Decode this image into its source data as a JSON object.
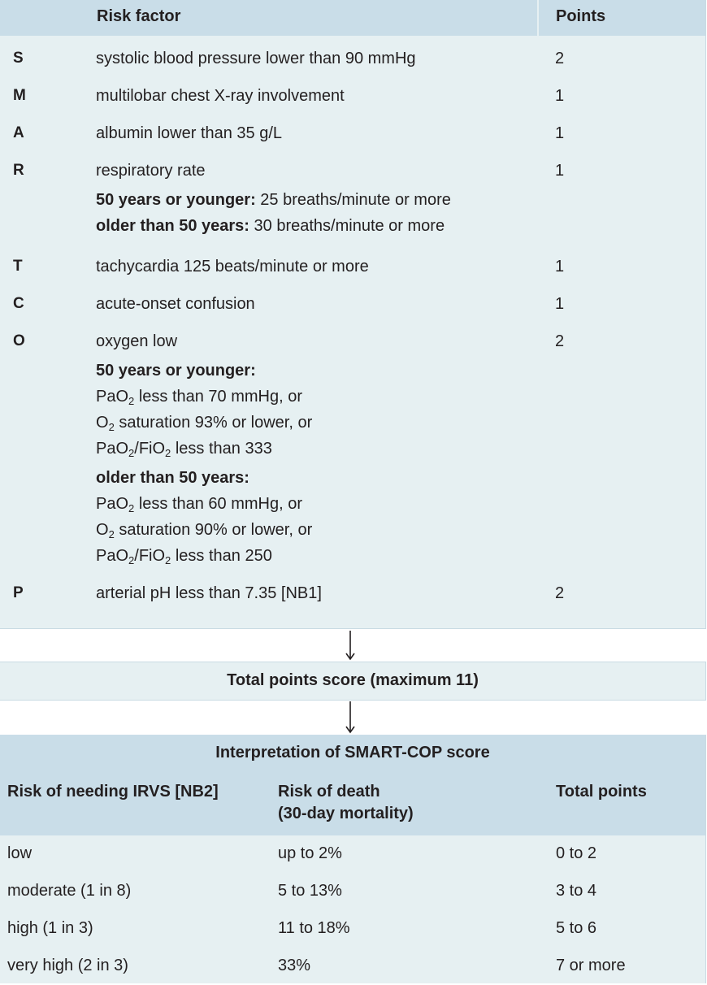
{
  "risk_table": {
    "header": {
      "factor": "Risk factor",
      "points": "Points"
    },
    "rows": {
      "s": {
        "letter": "S",
        "text": "systolic blood pressure lower than 90 mmHg",
        "points": "2"
      },
      "m": {
        "letter": "M",
        "text": "multilobar chest X-ray involvement",
        "points": "1"
      },
      "a": {
        "letter": "A",
        "text": "albumin lower than 35 g/L",
        "points": "1"
      },
      "r": {
        "letter": "R",
        "text": "respiratory rate",
        "points": "1",
        "young_label": "50 years or younger:",
        "young_text": " 25 breaths/minute or more",
        "old_label": "older than 50 years:",
        "old_text": " 30 breaths/minute or more"
      },
      "t": {
        "letter": "T",
        "text": "tachycardia 125 beats/minute or more",
        "points": "1"
      },
      "c": {
        "letter": "C",
        "text": "acute-onset confusion",
        "points": "1"
      },
      "o": {
        "letter": "O",
        "text": "oxygen low",
        "points": "2",
        "young_label": "50 years or younger:",
        "young_pao2_pre": "PaO",
        "young_pao2_sub": "2",
        "young_pao2_post": " less than 70 mmHg, or",
        "young_sat_pre": "O",
        "young_sat_sub": "2",
        "young_sat_post": " saturation 93% or lower, or",
        "young_ratio_a": "PaO",
        "young_ratio_sub1": "2",
        "young_ratio_b": "/FiO",
        "young_ratio_sub2": "2",
        "young_ratio_c": " less than 333",
        "old_label": "older than 50 years:",
        "old_pao2_pre": "PaO",
        "old_pao2_sub": "2",
        "old_pao2_post": " less than 60 mmHg, or",
        "old_sat_pre": "O",
        "old_sat_sub": "2",
        "old_sat_post": " saturation 90% or lower, or",
        "old_ratio_a": "PaO",
        "old_ratio_sub1": "2",
        "old_ratio_b": "/FiO",
        "old_ratio_sub2": "2",
        "old_ratio_c": " less than 250"
      },
      "p": {
        "letter": "P",
        "text": "arterial pH less than 7.35 [NB1]",
        "points": "2"
      }
    }
  },
  "total": {
    "label": "Total points score (maximum 11)"
  },
  "interpretation": {
    "title": "Interpretation of SMART-COP score",
    "columns": {
      "irvs": "Risk of needing IRVS [NB2]",
      "death_line1": "Risk of death",
      "death_line2": "(30-day  mortality)",
      "points": "Total points"
    },
    "rows": [
      {
        "irvs": "low",
        "death": "up to 2%",
        "points": "0 to 2"
      },
      {
        "irvs": "moderate (1 in 8)",
        "death": "5 to 13%",
        "points": "3 to 4"
      },
      {
        "irvs": "high (1 in 3)",
        "death": "11 to 18%",
        "points": "5 to 6"
      },
      {
        "irvs": "very high (2 in 3)",
        "death": "33%",
        "points": "7 or more"
      }
    ]
  },
  "colors": {
    "header_bg": "#c9dde8",
    "body_bg": "#e6f0f2",
    "text": "#231f20"
  },
  "icons": {
    "arrow": "down-arrow-icon"
  }
}
